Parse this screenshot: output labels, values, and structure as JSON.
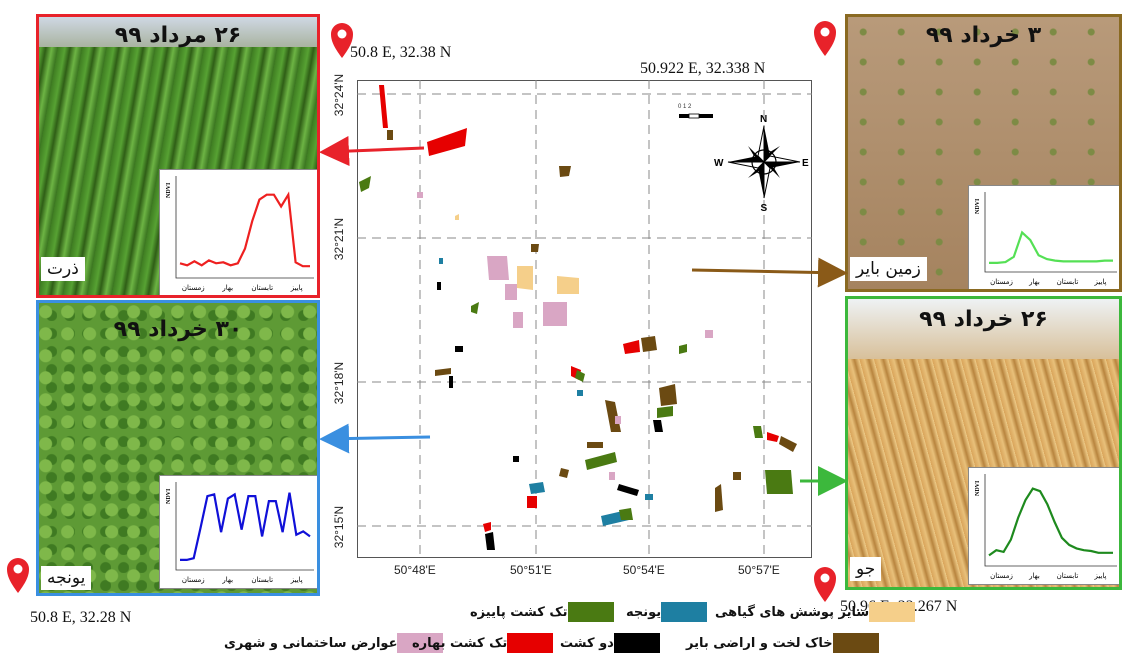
{
  "colors": {
    "winter_single": "#4a7a12",
    "alfalfa": "#1e7fa2",
    "other_veg": "#f5cf8a",
    "urban": "#d9a6c4",
    "spring_single": "#e60000",
    "double": "#000000",
    "bare": "#6b4a12",
    "arrow_red": "#e8222a",
    "arrow_blue": "#3a8fe0",
    "arrow_brown": "#8a5a18",
    "arrow_green": "#3cb83c",
    "frame_red": "#e8222a",
    "frame_blue": "#3a8fe0",
    "frame_brown": "#8a6a22",
    "frame_green": "#3cb83c"
  },
  "panels": {
    "corn": {
      "date": "۲۶ مرداد ۹۹",
      "label": "ذرت",
      "ndvi_values": [
        0.15,
        0.13,
        0.17,
        0.13,
        0.18,
        0.15,
        0.16,
        0.13,
        0.15,
        0.3,
        0.58,
        0.8,
        0.85,
        0.85,
        0.73,
        0.85,
        0.16,
        0.12,
        0.12
      ]
    },
    "alfalfa": {
      "date": "۳۰ خرداد ۹۹",
      "label": "یونجه",
      "ndvi_values": [
        0.12,
        0.12,
        0.14,
        0.5,
        0.88,
        0.9,
        0.45,
        0.85,
        0.9,
        0.48,
        0.88,
        0.88,
        0.4,
        0.82,
        0.82,
        0.45,
        0.92,
        0.42,
        0.46,
        0.4
      ]
    },
    "bare": {
      "date": "۳ خرداد ۹۹",
      "label": "زمین بایر",
      "ndvi_values": [
        0.12,
        0.12,
        0.13,
        0.2,
        0.52,
        0.42,
        0.22,
        0.17,
        0.15,
        0.14,
        0.14,
        0.14,
        0.14,
        0.14,
        0.15,
        0.15
      ]
    },
    "barley": {
      "date": "۲۶ خرداد ۹۹",
      "label": "جو",
      "ndvi_values": [
        0.12,
        0.18,
        0.16,
        0.3,
        0.55,
        0.75,
        0.88,
        0.85,
        0.7,
        0.5,
        0.32,
        0.24,
        0.2,
        0.18,
        0.17,
        0.15,
        0.15,
        0.15
      ]
    }
  },
  "ndvi_axis": {
    "ylabel": "NDVI",
    "seasons": [
      "زمستان",
      "بهار",
      "تابستان",
      "پاییز"
    ]
  },
  "coordinates": {
    "corn": "50.8 E, 32.38 N",
    "bare": "50.922 E, 32.338 N",
    "alfalfa": "50.8 E, 32.28 N",
    "barley": "50.96 E, 32.267 N"
  },
  "map": {
    "lat_ticks": [
      "32°24'N",
      "32°21'N",
      "32°18'N",
      "32°15'N"
    ],
    "lon_ticks": [
      "50°48'E",
      "50°51'E",
      "50°54'E",
      "50°57'E"
    ],
    "scale_label": "0 1 2",
    "compass": {
      "n": "N",
      "s": "S",
      "e": "E",
      "w": "W"
    }
  },
  "legend": {
    "winter_single": "تک کشت پاییزه",
    "alfalfa": "یونجه",
    "other_veg": "سایر پوشش های گیاهی",
    "bare": "خاک لخت و اراضی بایر",
    "double": "دو کشت",
    "spring_single": "تک کشت بهاره",
    "urban": "عوارض ساختمانی و شهری"
  }
}
